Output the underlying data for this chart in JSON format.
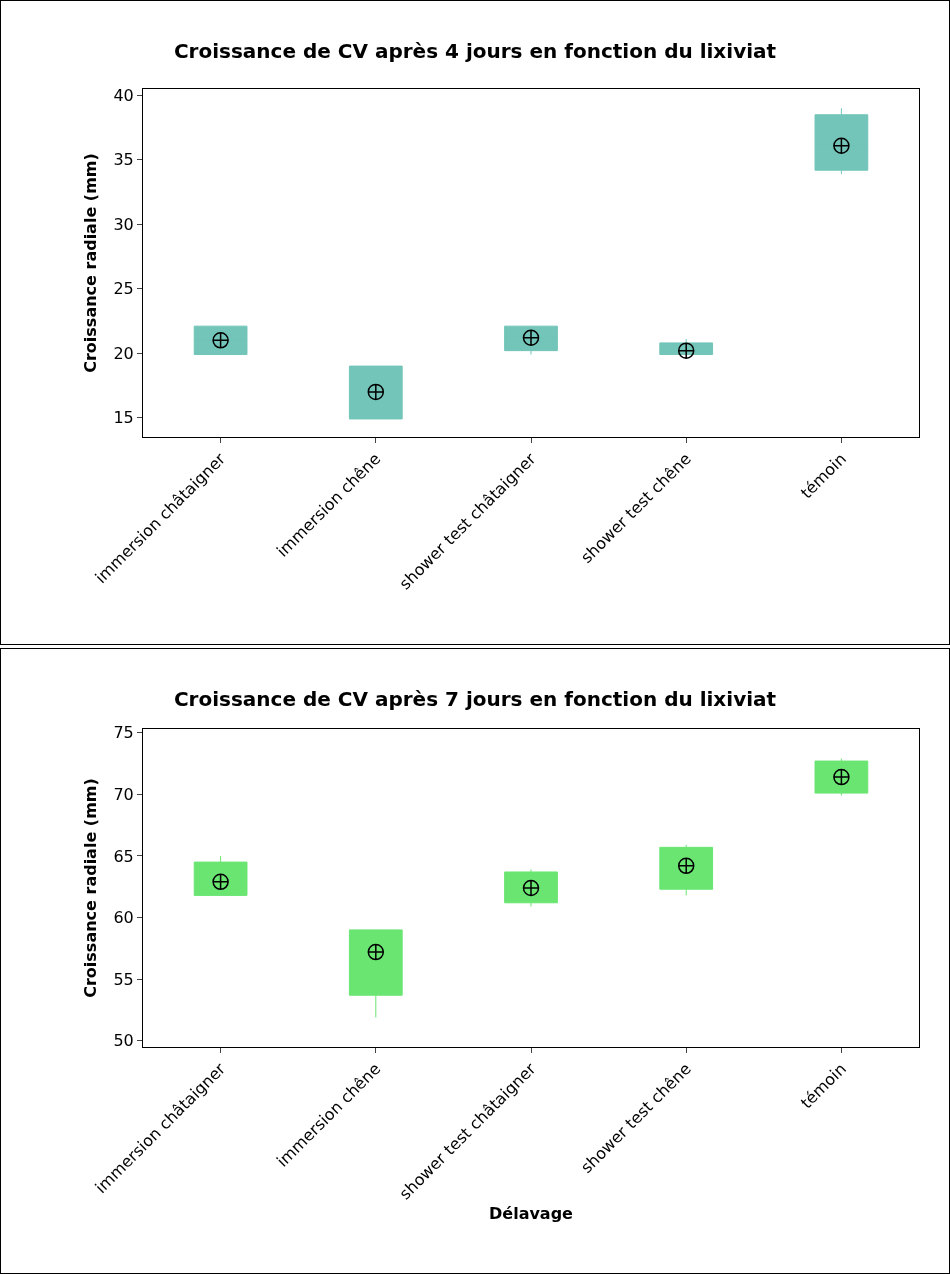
{
  "chart_data": [
    {
      "type": "box",
      "title": "Croissance de CV après 4 jours en fonction du lixiviat",
      "ylabel": "Croissance radiale (mm)",
      "categories": [
        "immersion châtaigner",
        "immersion chêne",
        "shower test châtaigner",
        "shower test chêne",
        "témoin"
      ],
      "ylim": [
        13.5,
        40.5
      ],
      "yticks": [
        15,
        20,
        25,
        30,
        35,
        40
      ],
      "grid": false,
      "series": [
        {
          "color": "#72c5b8",
          "boxes": [
            {
              "low": 19.9,
              "q1": 19.9,
              "median": 21,
              "q3": 22.1,
              "high": 22.1,
              "mean": 21
            },
            {
              "low": 14.9,
              "q1": 14.9,
              "median": 17,
              "q3": 19,
              "high": 19,
              "mean": 17
            },
            {
              "low": 19.9,
              "q1": 20.2,
              "median": 21.2,
              "q3": 22.1,
              "high": 22.1,
              "mean": 21.2
            },
            {
              "low": 19.9,
              "q1": 19.9,
              "median": 20.2,
              "q3": 20.8,
              "high": 21.1,
              "mean": 20.2
            },
            {
              "low": 33.9,
              "q1": 34.2,
              "median": 36.1,
              "q3": 38.5,
              "high": 39,
              "mean": 36.1
            }
          ]
        }
      ]
    },
    {
      "type": "box",
      "title": "Croissance de CV après 7 jours en fonction du lixiviat",
      "xlabel": "Délavage",
      "ylabel": "Croissance radiale (mm)",
      "categories": [
        "immersion châtaigner",
        "immersion chêne",
        "shower test châtaigner",
        "shower test chêne",
        "témoin"
      ],
      "ylim": [
        49.5,
        75.3
      ],
      "yticks": [
        50,
        55,
        60,
        65,
        70,
        75
      ],
      "grid": false,
      "series": [
        {
          "color": "#6ae572",
          "boxes": [
            {
              "low": 61.8,
              "q1": 61.8,
              "median": 62.9,
              "q3": 64.5,
              "high": 65,
              "mean": 62.9
            },
            {
              "low": 51.9,
              "q1": 53.7,
              "median": 57.2,
              "q3": 59,
              "high": 59,
              "mean": 57.2
            },
            {
              "low": 60.9,
              "q1": 61.2,
              "median": 62.4,
              "q3": 63.7,
              "high": 63.9,
              "mean": 62.4
            },
            {
              "low": 61.8,
              "q1": 62.3,
              "median": 64.2,
              "q3": 65.7,
              "high": 65.9,
              "mean": 64.2
            },
            {
              "low": 69.9,
              "q1": 70.1,
              "median": 71.4,
              "q3": 72.7,
              "high": 72.9,
              "mean": 71.4
            }
          ]
        }
      ]
    }
  ]
}
